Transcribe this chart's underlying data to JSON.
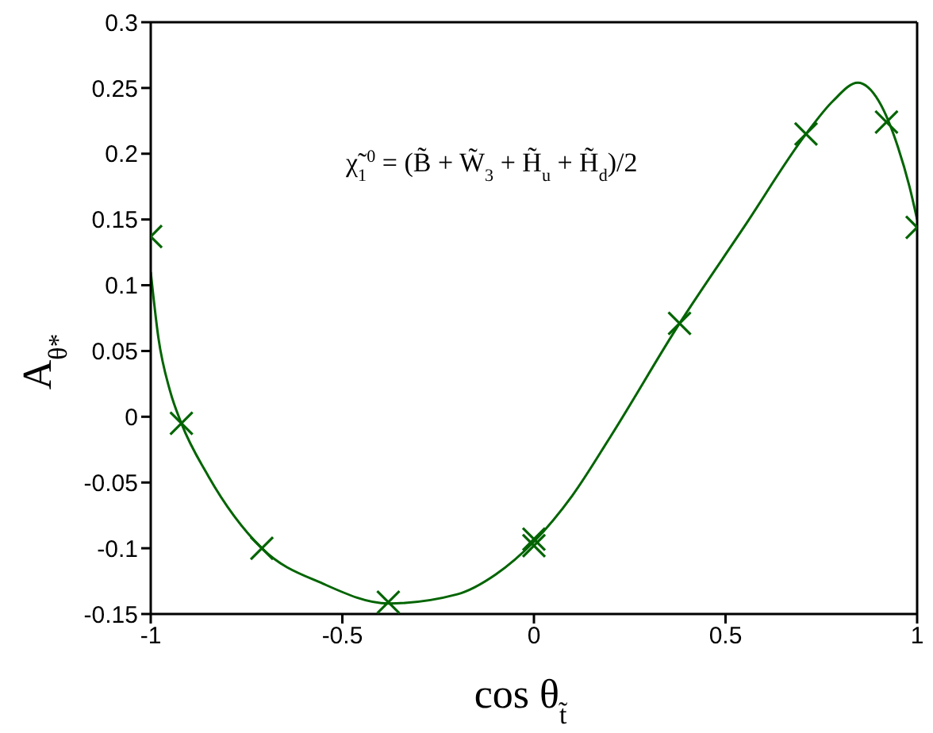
{
  "chart_data": {
    "type": "line",
    "xlabel": "cos θ$_{t̃}$",
    "ylabel": "A$_{θ*}$",
    "annotations": [
      "χ̃$_{1}$$^{0}$ = (B̃ + W̃$_{3}$ + H̃$_{u}$ + H̃$_{d}$)/2"
    ],
    "series": [
      {
        "color": "#006400",
        "x": [
          -1,
          -0.98,
          -0.95,
          -0.92,
          -0.85,
          -0.71,
          -0.55,
          -0.38,
          -0.2,
          -0.1,
          0,
          0.1,
          0.2,
          0.38,
          0.55,
          0.71,
          0.78,
          0.845,
          0.9,
          0.95,
          0.98,
          1
        ],
        "values": [
          0.11,
          0.06,
          0.02,
          -0.005,
          -0.045,
          -0.1,
          -0.127,
          -0.142,
          -0.135,
          -0.12,
          -0.095,
          -0.06,
          -0.015,
          0.071,
          0.145,
          0.215,
          0.24,
          0.254,
          0.24,
          0.205,
          0.175,
          0.15
        ]
      },
      {
        "type": "scatter",
        "color": "#006400",
        "marker": "cross",
        "x": [
          -1,
          -0.92,
          -0.71,
          -0.38,
          0,
          0,
          0.38,
          0.71,
          0.92,
          1
        ],
        "values": [
          0.137,
          -0.005,
          -0.1,
          -0.141,
          -0.093,
          -0.098,
          0.071,
          0.215,
          0.224,
          0.144
        ]
      }
    ],
    "xlim": [
      -1,
      1
    ],
    "xticks": [
      -1,
      -0.5,
      0,
      0.5,
      1
    ],
    "ylim": [
      -0.15,
      0.3
    ],
    "yticks": [
      -0.15,
      -0.1,
      -0.05,
      0,
      0.05,
      0.1,
      0.15,
      0.2,
      0.25,
      0.3
    ],
    "grid": false
  }
}
